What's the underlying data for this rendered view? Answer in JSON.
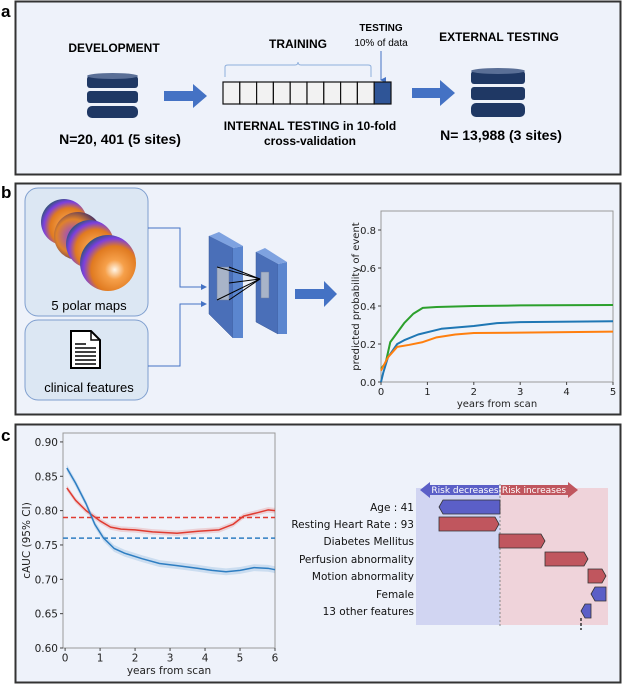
{
  "panel_labels": {
    "a": "a",
    "b": "b",
    "c": "c"
  },
  "panel_a": {
    "development_title": "DEVELOPMENT",
    "development_n": "N=20, 401 (5 sites)",
    "training_label": "TRAINING",
    "testing_label": "TESTING",
    "testing_sub": "10% of data",
    "internal_line1": "INTERNAL TESTING in 10-fold",
    "internal_line2": "cross-validation",
    "external_title": "EXTERNAL TESTING",
    "external_n": "N= 13,988 (3 sites)",
    "folds": 10,
    "colors": {
      "db": "#1f3864",
      "arrow": "#4472c4",
      "test_fold": "#2f5597"
    }
  },
  "panel_b": {
    "polar_maps_label": "5 polar maps",
    "clinical_label": "clinical features",
    "icons": [
      "polar-map-stack-icon",
      "document-icon",
      "cnn-layer-icon",
      "arrow-right-icon"
    ]
  },
  "chart_data": [
    {
      "type": "line",
      "ylabel": "predicted probability of event",
      "xlabel": "years from scan",
      "xlim": [
        0,
        5
      ],
      "ylim": [
        0,
        0.9
      ],
      "xticks": [
        "0",
        "1",
        "2",
        "3",
        "4",
        "5"
      ],
      "yticks": [
        "0.0",
        "0.2",
        "0.4",
        "0.6",
        "0.8"
      ],
      "series": [
        {
          "color": "#2ca02c",
          "points": [
            [
              0,
              0.07
            ],
            [
              0.1,
              0.1
            ],
            [
              0.2,
              0.21
            ],
            [
              0.35,
              0.26
            ],
            [
              0.5,
              0.31
            ],
            [
              0.7,
              0.36
            ],
            [
              0.9,
              0.39
            ],
            [
              1.2,
              0.395
            ],
            [
              2,
              0.4
            ],
            [
              3,
              0.403
            ],
            [
              5,
              0.405
            ]
          ]
        },
        {
          "color": "#1f77b4",
          "points": [
            [
              0,
              0
            ],
            [
              0.05,
              0.05
            ],
            [
              0.15,
              0.13
            ],
            [
              0.35,
              0.2
            ],
            [
              0.5,
              0.22
            ],
            [
              0.8,
              0.25
            ],
            [
              1.3,
              0.28
            ],
            [
              2,
              0.295
            ],
            [
              2.5,
              0.31
            ],
            [
              3,
              0.315
            ],
            [
              5,
              0.32
            ]
          ]
        },
        {
          "color": "#ff7f0e",
          "points": [
            [
              0,
              0.06
            ],
            [
              0.15,
              0.13
            ],
            [
              0.35,
              0.185
            ],
            [
              0.6,
              0.195
            ],
            [
              0.9,
              0.21
            ],
            [
              1.2,
              0.235
            ],
            [
              1.6,
              0.25
            ],
            [
              2,
              0.258
            ],
            [
              3,
              0.26
            ],
            [
              5,
              0.265
            ]
          ]
        }
      ]
    },
    {
      "type": "line",
      "ylabel": "cAUC (95% CI)",
      "xlabel": "years from scan",
      "xlim": [
        -0.06,
        6
      ],
      "ylim": [
        0.6,
        0.913
      ],
      "xticks": [
        "0",
        "1",
        "2",
        "3",
        "4",
        "5",
        "6"
      ],
      "yticks": [
        "0.60",
        "0.65",
        "0.70",
        "0.75",
        "0.80",
        "0.85",
        "0.90"
      ],
      "series": [
        {
          "color": "#e03c31",
          "ci_halfwidth": 0.004,
          "points": [
            [
              0.05,
              0.833
            ],
            [
              0.3,
              0.815
            ],
            [
              0.6,
              0.8
            ],
            [
              1,
              0.785
            ],
            [
              1.3,
              0.776
            ],
            [
              1.6,
              0.773
            ],
            [
              2,
              0.772
            ],
            [
              2.5,
              0.769
            ],
            [
              3.2,
              0.767
            ],
            [
              3.8,
              0.77
            ],
            [
              4.4,
              0.772
            ],
            [
              4.8,
              0.78
            ],
            [
              5.1,
              0.792
            ],
            [
              5.5,
              0.797
            ],
            [
              5.8,
              0.801
            ],
            [
              6,
              0.8
            ]
          ]
        },
        {
          "color": "#2e7ec2",
          "ci_halfwidth": 0.005,
          "points": [
            [
              0.05,
              0.862
            ],
            [
              0.3,
              0.84
            ],
            [
              0.6,
              0.81
            ],
            [
              0.85,
              0.78
            ],
            [
              1.1,
              0.76
            ],
            [
              1.4,
              0.745
            ],
            [
              1.7,
              0.738
            ],
            [
              2.2,
              0.73
            ],
            [
              2.7,
              0.723
            ],
            [
              3.2,
              0.72
            ],
            [
              3.8,
              0.716
            ],
            [
              4.2,
              0.713
            ],
            [
              4.6,
              0.711
            ],
            [
              5,
              0.713
            ],
            [
              5.4,
              0.717
            ],
            [
              5.8,
              0.716
            ],
            [
              6,
              0.714
            ]
          ]
        }
      ],
      "reference_lines": [
        {
          "color": "#e03c31",
          "y": 0.79
        },
        {
          "color": "#2e7ec2",
          "y": 0.76
        }
      ]
    },
    {
      "type": "bar",
      "subtype": "waterfall",
      "decrease_label": "Risk decreases",
      "increase_label": "Risk increases",
      "categories": [
        "Age : 41",
        "Resting Heart Rate : 93",
        "Diabetes Mellitus",
        "Perfusion abnormality",
        "Motion abnormality",
        "Female",
        "13 other features"
      ],
      "values": [
        -0.61,
        0.6,
        0.46,
        0.43,
        0.18,
        -0.15,
        -0.1
      ],
      "colors": {
        "increase": "#c0565e",
        "decrease": "#5b5fc7",
        "decrease_bg": "#d1d5f2",
        "increase_bg": "#efd3da"
      }
    }
  ]
}
